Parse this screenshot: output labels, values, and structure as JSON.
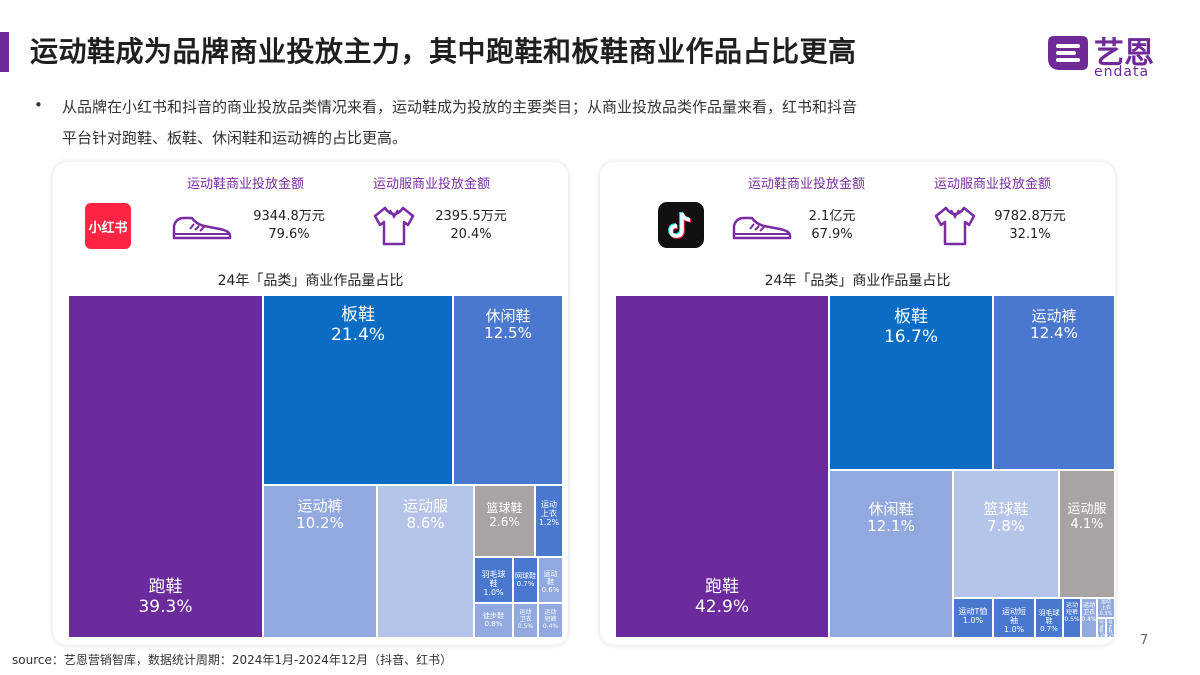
{
  "title": "运动鞋成为品牌商业投放主力，其中跑鞋和板鞋商业作品占比更高",
  "logo": {
    "cn": "艺恩",
    "en": "endata"
  },
  "bullet": "•",
  "description": {
    "line1": "从品牌在小红书和抖音的商业投放品类情况来看，运动鞋成为投放的主要类目；从商业投放品类作品量来看，红书和抖音",
    "line2": "平台针对跑鞋、板鞋、休闲鞋和运动裤的占比更高。"
  },
  "panels": {
    "xhs": {
      "platform_logo_text": "小红书",
      "shoes_label": "运动鞋商业投放金额",
      "apparel_label": "运动服商业投放金额",
      "shoes_amount": "9344.8万元",
      "shoes_share": "79.6%",
      "apparel_amount": "2395.5万元",
      "apparel_share": "20.4%"
    },
    "douyin": {
      "platform_logo_text": "抖音",
      "shoes_label": "运动鞋商业投放金额",
      "apparel_label": "运动服商业投放金额",
      "shoes_amount": "2.1亿元",
      "shoes_share": "67.9%",
      "apparel_amount": "9782.8万元",
      "apparel_share": "32.1%"
    }
  },
  "colors": {
    "purple": "#6b2b9c",
    "blue": "#0a6cc2",
    "mid_blue": "#4a78cf",
    "light_blue": "#92a9df",
    "pale_blue": "#b5c4e9",
    "gray": "#a9a3a4",
    "brand": "#6f2a98"
  },
  "chart_data": [
    {
      "type": "treemap",
      "title": "24年「品类」商业作品量占比",
      "platform": "小红书",
      "items": [
        {
          "name": "跑鞋",
          "value": 39.3,
          "label": "39.3%"
        },
        {
          "name": "板鞋",
          "value": 21.4,
          "label": "21.4%"
        },
        {
          "name": "休闲鞋",
          "value": 12.5,
          "label": "12.5%"
        },
        {
          "name": "运动裤",
          "value": 10.2,
          "label": "10.2%"
        },
        {
          "name": "运动服",
          "value": 8.6,
          "label": "8.6%"
        },
        {
          "name": "篮球鞋",
          "value": 2.6,
          "label": "2.6%"
        },
        {
          "name": "运动\n上衣",
          "value": 1.2,
          "label": "1.2%"
        },
        {
          "name": "羽毛球\n鞋",
          "value": 1.0,
          "label": "1.0%"
        },
        {
          "name": "网球鞋",
          "value": 0.7,
          "label": "0.7%"
        },
        {
          "name": "运动\n鞋",
          "value": 0.6,
          "label": "0.6%"
        },
        {
          "name": "徒步鞋",
          "value": 0.8,
          "label": "0.8%"
        },
        {
          "name": "运动\n卫衣",
          "value": 0.5,
          "label": "0.5%"
        },
        {
          "name": "运动\n短裤",
          "value": 0.4,
          "label": "0.4%"
        }
      ]
    },
    {
      "type": "treemap",
      "title": "24年「品类」商业作品量占比",
      "platform": "抖音",
      "items": [
        {
          "name": "跑鞋",
          "value": 42.9,
          "label": "42.9%"
        },
        {
          "name": "板鞋",
          "value": 16.7,
          "label": "16.7%"
        },
        {
          "name": "运动裤",
          "value": 12.4,
          "label": "12.4%"
        },
        {
          "name": "休闲鞋",
          "value": 12.1,
          "label": "12.1%"
        },
        {
          "name": "篮球鞋",
          "value": 7.8,
          "label": "7.8%"
        },
        {
          "name": "运动服",
          "value": 4.1,
          "label": "4.1%"
        },
        {
          "name": "运动T恤",
          "value": 1.0,
          "label": "1.0%"
        },
        {
          "name": "运动短\n袖",
          "value": 1.0,
          "label": "1.0%"
        },
        {
          "name": "羽毛球\n鞋",
          "value": 0.7,
          "label": "0.7%"
        },
        {
          "name": "运动\n短裤",
          "value": 0.5,
          "label": "0.5%"
        },
        {
          "name": "运动\n卫衣",
          "value": 0.4,
          "label": "0.4%"
        },
        {
          "name": "运动\n上衣",
          "value": 0.3,
          "label": "0.3%"
        },
        {
          "name": "网球\n鞋",
          "value": 0.2,
          "label": "0.2%"
        },
        {
          "name": "徒步\n鞋",
          "value": 0.2,
          "label": "0.2%"
        }
      ]
    }
  ],
  "source": "source：艺恩营销智库，数据统计周期：2024年1月-2024年12月（抖音、红书）",
  "page_number": "7"
}
